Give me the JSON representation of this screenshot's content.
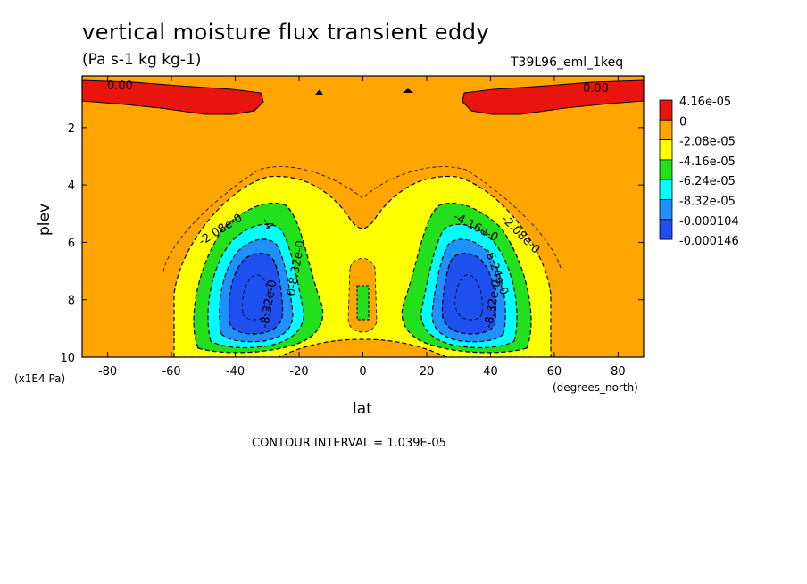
{
  "chart_data": {
    "type": "heatmap",
    "title": "vertical moisture flux transient eddy",
    "subtitle": "(Pa s-1 kg kg-1)",
    "dataset": "T39L96_eml_1keq",
    "xlabel": "lat",
    "x_units": "(degrees_north)",
    "ylabel": "plev",
    "y_units": "(x1E4 Pa)",
    "xlim": [
      -88,
      88
    ],
    "ylim": [
      0.2,
      10
    ],
    "y_inverted": true,
    "x_ticks": [
      -80,
      -60,
      -40,
      -20,
      0,
      20,
      40,
      60,
      80
    ],
    "y_ticks": [
      2,
      4,
      6,
      8,
      10
    ],
    "contour_interval": "CONTOUR INTERVAL = 1.039E-05",
    "legend": [
      {
        "label": "4.16e-05",
        "color": "#e8140e"
      },
      {
        "label": "0",
        "color": "#ffa500"
      },
      {
        "label": "-2.08e-05",
        "color": "#ffff00"
      },
      {
        "label": "-4.16e-05",
        "color": "#22e01c"
      },
      {
        "label": "-6.24e-05",
        "color": "#00ffff"
      },
      {
        "label": "-8.32e-05",
        "color": "#1e90ff"
      },
      {
        "label": "-0.000104",
        "color": "#1e50f0"
      },
      {
        "label": "-0.000146",
        "color": ""
      }
    ],
    "regions": [
      {
        "name": "upper-left positive",
        "level": 4.16e-05,
        "lat_range": [
          -85,
          -35
        ],
        "plev_range": [
          0.4,
          1.2
        ]
      },
      {
        "name": "upper-right positive",
        "level": 4.16e-05,
        "lat_range": [
          35,
          85
        ],
        "plev_range": [
          0.4,
          1.2
        ]
      },
      {
        "name": "left negative minimum",
        "level": -0.000146,
        "center": [
          -33,
          7.9
        ]
      },
      {
        "name": "right negative minimum",
        "level": -0.000146,
        "center": [
          33,
          7.9
        ]
      }
    ],
    "contour_labels": [
      "0.00",
      "0.00",
      "-2.08e-0",
      "-4",
      "-8.32e-0",
      "0-8.32e-0",
      "-4.16e-0",
      "-2.08e-0",
      "-6.24e-0",
      "-8.32e-0"
    ]
  }
}
